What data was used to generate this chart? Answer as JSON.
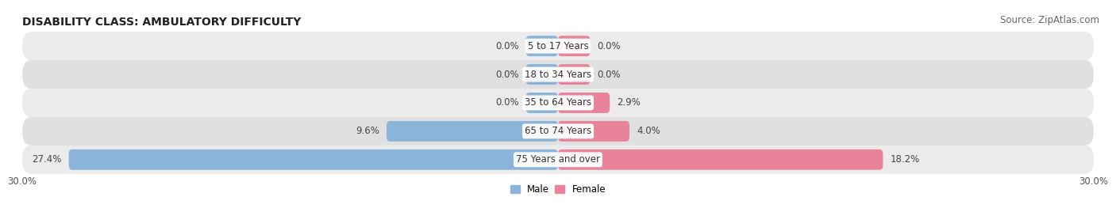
{
  "title": "DISABILITY CLASS: AMBULATORY DIFFICULTY",
  "source": "Source: ZipAtlas.com",
  "categories": [
    "5 to 17 Years",
    "18 to 34 Years",
    "35 to 64 Years",
    "65 to 74 Years",
    "75 Years and over"
  ],
  "male_values": [
    0.0,
    0.0,
    0.0,
    9.6,
    27.4
  ],
  "female_values": [
    0.0,
    0.0,
    2.9,
    4.0,
    18.2
  ],
  "male_color": "#8ab4d9",
  "female_color": "#e8839a",
  "row_bg_colors": [
    "#ebebeb",
    "#e0e0e0"
  ],
  "x_min": -30.0,
  "x_max": 30.0,
  "x_tick_labels": [
    "30.0%",
    "30.0%"
  ],
  "bar_height": 0.72,
  "title_fontsize": 10,
  "label_fontsize": 8.5,
  "tick_fontsize": 8.5,
  "source_fontsize": 8.5,
  "min_bar_width": 1.8
}
